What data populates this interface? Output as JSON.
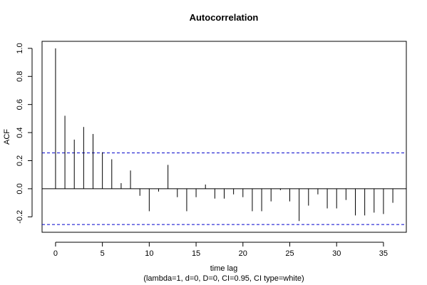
{
  "chart_data": {
    "type": "bar",
    "title": "Autocorrelation",
    "xlabel": "time lag",
    "subtitle": "(lambda=1, d=0, D=0, CI=0.95, CI type=white)",
    "ylabel": "ACF",
    "xlim": [
      -1.44,
      37.44
    ],
    "ylim": [
      -0.31,
      1.05
    ],
    "x_ticks": [
      0,
      5,
      10,
      15,
      20,
      25,
      30,
      35
    ],
    "y_ticks": [
      -0.2,
      0.0,
      0.2,
      0.4,
      0.6,
      0.8,
      1.0
    ],
    "y_tick_labels": [
      "-0.2",
      "0.0",
      "0.2",
      "0.4",
      "0.6",
      "0.8",
      "1.0"
    ],
    "confidence_band": [
      0.255,
      -0.255
    ],
    "zero_line": true,
    "colors": {
      "bars": "#000000",
      "ci_lines": "#0000cc",
      "frame": "#000000"
    },
    "lags": [
      0,
      1,
      2,
      3,
      4,
      5,
      6,
      7,
      8,
      9,
      10,
      11,
      12,
      13,
      14,
      15,
      16,
      17,
      18,
      19,
      20,
      21,
      22,
      23,
      24,
      25,
      26,
      27,
      28,
      29,
      30,
      31,
      32,
      33,
      34,
      35,
      36
    ],
    "values": [
      1.0,
      0.52,
      0.35,
      0.44,
      0.39,
      0.26,
      0.21,
      0.04,
      0.13,
      -0.05,
      -0.16,
      -0.02,
      0.17,
      -0.06,
      -0.16,
      -0.06,
      0.03,
      -0.07,
      -0.07,
      -0.04,
      -0.06,
      -0.16,
      -0.16,
      -0.09,
      -0.01,
      -0.09,
      -0.23,
      -0.12,
      -0.04,
      -0.14,
      -0.14,
      -0.08,
      -0.19,
      -0.19,
      -0.17,
      -0.18,
      -0.1
    ]
  }
}
